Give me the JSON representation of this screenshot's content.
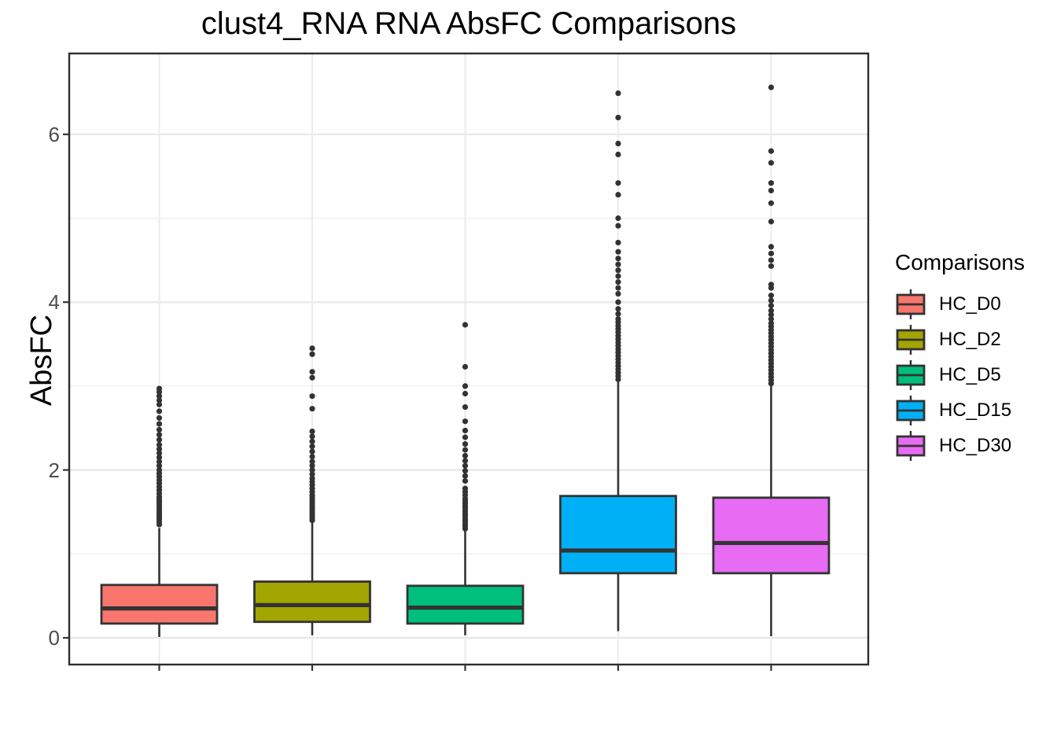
{
  "title": "clust4_RNA RNA AbsFC Comparisons",
  "legend": {
    "title": "Comparisons",
    "items": [
      {
        "label": "HC_D0",
        "color": "#F8766D"
      },
      {
        "label": "HC_D2",
        "color": "#A3A500"
      },
      {
        "label": "HC_D5",
        "color": "#00BF7D"
      },
      {
        "label": "HC_D15",
        "color": "#00B0F6"
      },
      {
        "label": "HC_D30",
        "color": "#E76BF3"
      }
    ]
  },
  "colors": {
    "box_stroke": "#333333",
    "outlier": "#333333",
    "panel_border": "#2d2d2d",
    "grid_major": "#e7e7e7",
    "grid_minor": "#f3f3f3",
    "grid_vertical": "#ededed",
    "tick_label": "#4D4D4D",
    "panel_background": "#ffffff"
  },
  "chart_data": {
    "type": "boxplot",
    "title": "clust4_RNA RNA AbsFC Comparisons",
    "xlabel": "",
    "ylabel": "AbsFC",
    "ylim": [
      -0.32,
      6.96
    ],
    "yticks": [
      0,
      2,
      4,
      6
    ],
    "ytick_labels": [
      "0",
      "2",
      "4",
      "6"
    ],
    "yminor": [
      1,
      3,
      5
    ],
    "grid": true,
    "legend_position": "right",
    "legend_title": "Comparisons",
    "x_tick_labels": [
      "",
      "",
      "",
      "",
      ""
    ],
    "categories": [
      "HC_D0",
      "HC_D2",
      "HC_D5",
      "HC_D15",
      "HC_D30"
    ],
    "series": [
      {
        "name": "HC_D0",
        "color": "#F8766D",
        "whisker_low": 0.01,
        "q1": 0.17,
        "median": 0.35,
        "q3": 0.63,
        "whisker_high": 1.31,
        "outliers": [
          1.35,
          1.38,
          1.41,
          1.44,
          1.47,
          1.5,
          1.53,
          1.56,
          1.59,
          1.62,
          1.65,
          1.68,
          1.72,
          1.76,
          1.8,
          1.84,
          1.88,
          1.92,
          1.96,
          2.0,
          2.05,
          2.1,
          2.15,
          2.2,
          2.25,
          2.3,
          2.36,
          2.42,
          2.48,
          2.55,
          2.62,
          2.7,
          2.78,
          2.83,
          2.88,
          2.93,
          2.97
        ]
      },
      {
        "name": "HC_D2",
        "color": "#A3A500",
        "whisker_low": 0.03,
        "q1": 0.19,
        "median": 0.39,
        "q3": 0.67,
        "whisker_high": 1.37,
        "outliers": [
          1.4,
          1.43,
          1.46,
          1.49,
          1.52,
          1.55,
          1.58,
          1.61,
          1.64,
          1.67,
          1.7,
          1.74,
          1.78,
          1.82,
          1.86,
          1.9,
          1.95,
          2.0,
          2.05,
          2.1,
          2.16,
          2.22,
          2.28,
          2.34,
          2.4,
          2.46,
          2.73,
          2.88,
          3.1,
          3.17,
          3.38,
          3.45
        ]
      },
      {
        "name": "HC_D5",
        "color": "#00BF7D",
        "whisker_low": 0.03,
        "q1": 0.17,
        "median": 0.36,
        "q3": 0.62,
        "whisker_high": 1.27,
        "outliers": [
          1.3,
          1.33,
          1.36,
          1.39,
          1.42,
          1.45,
          1.48,
          1.51,
          1.54,
          1.57,
          1.6,
          1.63,
          1.66,
          1.7,
          1.74,
          1.78,
          1.87,
          1.93,
          1.99,
          2.05,
          2.11,
          2.17,
          2.24,
          2.31,
          2.39,
          2.47,
          2.58,
          2.75,
          2.91,
          3.0,
          3.23,
          3.73
        ]
      },
      {
        "name": "HC_D15",
        "color": "#00B0F6",
        "whisker_low": 0.08,
        "q1": 0.77,
        "median": 1.04,
        "q3": 1.69,
        "whisker_high": 3.05,
        "outliers": [
          3.08,
          3.12,
          3.16,
          3.2,
          3.24,
          3.28,
          3.32,
          3.36,
          3.4,
          3.44,
          3.48,
          3.52,
          3.56,
          3.6,
          3.64,
          3.68,
          3.72,
          3.76,
          3.8,
          3.86,
          3.92,
          4.0,
          4.1,
          4.17,
          4.24,
          4.31,
          4.38,
          4.45,
          4.52,
          4.6,
          4.71,
          4.91,
          5.0,
          5.28,
          5.42,
          5.76,
          5.89,
          6.2,
          6.49
        ]
      },
      {
        "name": "HC_D30",
        "color": "#E76BF3",
        "whisker_low": 0.02,
        "q1": 0.77,
        "median": 1.13,
        "q3": 1.67,
        "whisker_high": 3.0,
        "outliers": [
          3.03,
          3.07,
          3.11,
          3.15,
          3.19,
          3.23,
          3.27,
          3.31,
          3.35,
          3.39,
          3.43,
          3.47,
          3.51,
          3.55,
          3.59,
          3.63,
          3.67,
          3.71,
          3.75,
          3.8,
          3.85,
          3.9,
          3.96,
          4.02,
          4.08,
          4.17,
          4.21,
          4.43,
          4.5,
          4.58,
          4.66,
          4.96,
          5.18,
          5.33,
          5.42,
          5.66,
          5.8,
          6.56
        ]
      }
    ]
  }
}
